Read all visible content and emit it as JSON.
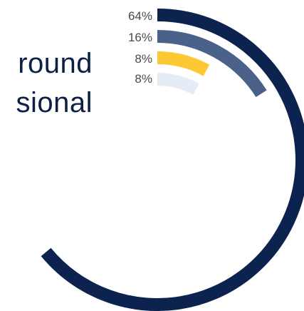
{
  "title_lines": [
    "round",
    "sional"
  ],
  "chart_data": {
    "type": "radial-bar",
    "title": "",
    "series": [
      {
        "label": "64%",
        "value": 64,
        "color": "#0c2350"
      },
      {
        "label": "16%",
        "value": 16,
        "color": "#4a6289"
      },
      {
        "label": "8%",
        "value": 8,
        "color": "#fcc934"
      },
      {
        "label": "8%",
        "value": 8,
        "color": "#e6ecf6"
      }
    ]
  }
}
